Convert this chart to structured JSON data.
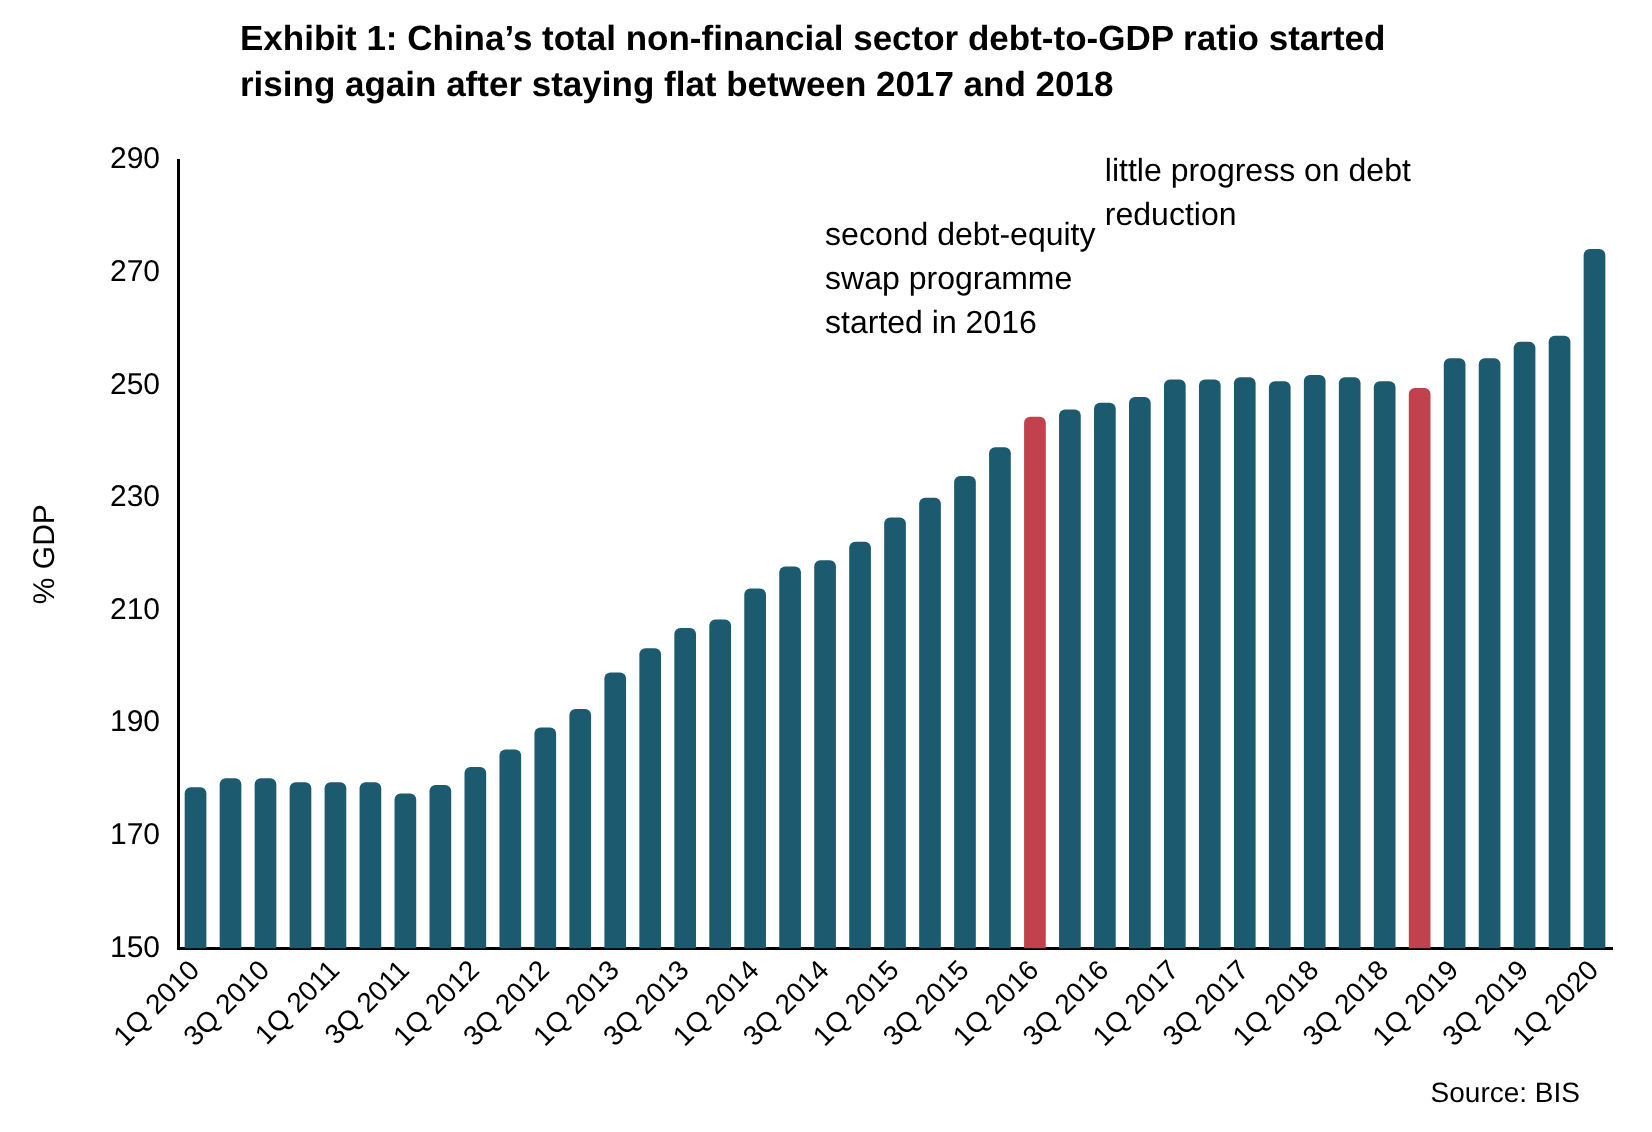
{
  "chart_data": {
    "type": "bar",
    "title": "Exhibit 1: China’s total non-financial sector debt-to-GDP ratio started rising again after staying flat between 2017 and 2018",
    "ylabel": "% GDP",
    "categories": [
      "1Q 2010",
      null,
      "3Q 2010",
      null,
      "1Q 2011",
      null,
      "3Q 2011",
      null,
      "1Q 2012",
      null,
      "3Q 2012",
      null,
      "1Q 2013",
      null,
      "3Q 2013",
      null,
      "1Q 2014",
      null,
      "3Q 2014",
      null,
      "1Q 2015",
      null,
      "3Q 2015",
      null,
      "1Q 2016",
      null,
      "3Q 2016",
      null,
      "1Q 2017",
      null,
      "3Q 2017",
      null,
      "1Q 2018",
      null,
      "3Q 2018",
      null,
      "1Q 2019",
      null,
      "3Q 2019",
      null,
      "1Q 2020"
    ],
    "values": [
      178.6,
      180.2,
      180.2,
      179.5,
      179.5,
      179.5,
      177.5,
      179.0,
      182.2,
      185.3,
      189.2,
      192.5,
      199.0,
      203.3,
      206.9,
      208.4,
      213.9,
      217.8,
      218.9,
      222.2,
      226.5,
      230.0,
      233.9,
      239.0,
      244.4,
      245.7,
      246.9,
      247.9,
      251.0,
      251.0,
      251.4,
      250.7,
      251.8,
      251.4,
      250.7,
      249.5,
      254.8,
      254.8,
      257.7,
      258.8,
      274.2
    ],
    "colors": [
      "#1b5a6f",
      "#1b5a6f",
      "#1b5a6f",
      "#1b5a6f",
      "#1b5a6f",
      "#1b5a6f",
      "#1b5a6f",
      "#1b5a6f",
      "#1b5a6f",
      "#1b5a6f",
      "#1b5a6f",
      "#1b5a6f",
      "#1b5a6f",
      "#1b5a6f",
      "#1b5a6f",
      "#1b5a6f",
      "#1b5a6f",
      "#1b5a6f",
      "#1b5a6f",
      "#1b5a6f",
      "#1b5a6f",
      "#1b5a6f",
      "#1b5a6f",
      "#1b5a6f",
      "#c1424c",
      "#1b5a6f",
      "#1b5a6f",
      "#1b5a6f",
      "#1b5a6f",
      "#1b5a6f",
      "#1b5a6f",
      "#1b5a6f",
      "#1b5a6f",
      "#1b5a6f",
      "#1b5a6f",
      "#c1424c",
      "#1b5a6f",
      "#1b5a6f",
      "#1b5a6f",
      "#1b5a6f",
      "#1b5a6f"
    ],
    "ylim": [
      150,
      290
    ],
    "yticks": [
      150,
      170,
      190,
      210,
      230,
      250,
      270,
      290
    ],
    "grid": false,
    "annotations": [
      "second debt-equity swap programme started in 2016",
      "little progress on debt reduction",
      "Source: BIS"
    ]
  }
}
